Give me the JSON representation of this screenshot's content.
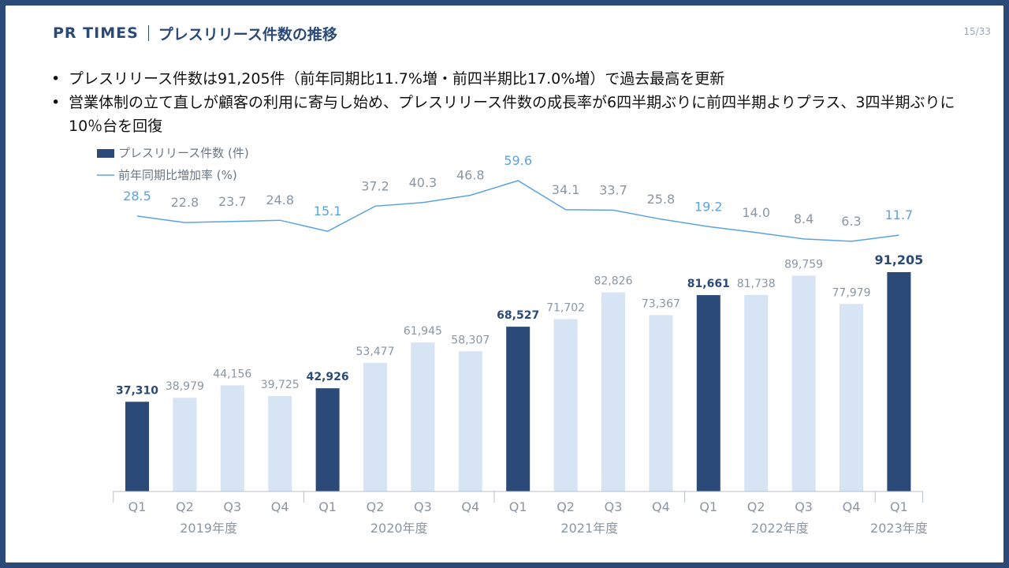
{
  "header": {
    "brand": "PR TIMES",
    "title": "プレスリリース件数の推移",
    "page": "15/33"
  },
  "bullets": [
    "プレスリリース件数は91,205件（前年同期比11.7%増・前四半期比17.0%増）で過去最高を更新",
    "営業体制の立て直しが顧客の利用に寄与し始め、プレスリリース件数の成長率が6四半期ぶりに前四半期よりプラス、3四半期ぶりに10％台を回復"
  ],
  "chart_data": {
    "type": "bar",
    "categories": [
      "Q1",
      "Q2",
      "Q3",
      "Q4",
      "Q1",
      "Q2",
      "Q3",
      "Q4",
      "Q1",
      "Q2",
      "Q3",
      "Q4",
      "Q1",
      "Q2",
      "Q3",
      "Q4",
      "Q1"
    ],
    "groups": [
      "2019年度",
      "2020年度",
      "2021年度",
      "2022年度",
      "2023年度"
    ],
    "group_of": [
      0,
      0,
      0,
      0,
      1,
      1,
      1,
      1,
      2,
      2,
      2,
      2,
      3,
      3,
      3,
      3,
      4
    ],
    "series": [
      {
        "name": "プレスリリース件数 (件)",
        "type": "bar",
        "values": [
          37310,
          38979,
          44156,
          39725,
          42926,
          53477,
          61945,
          58307,
          68527,
          71702,
          82826,
          73367,
          81661,
          81738,
          89759,
          77979,
          91205
        ],
        "labels": [
          "37,310",
          "38,979",
          "44,156",
          "39,725",
          "42,926",
          "53,477",
          "61,945",
          "58,307",
          "68,527",
          "71,702",
          "82,826",
          "73,367",
          "81,661",
          "81,738",
          "89,759",
          "77,979",
          "91,205"
        ]
      },
      {
        "name": "前年同期比増加率 (%)",
        "type": "line",
        "values": [
          28.5,
          22.8,
          23.7,
          24.8,
          15.1,
          37.2,
          40.3,
          46.8,
          59.6,
          34.1,
          33.7,
          25.8,
          19.2,
          14.0,
          8.4,
          6.3,
          11.7
        ],
        "labels": [
          "28.5",
          "22.8",
          "23.7",
          "24.8",
          "15.1",
          "37.2",
          "40.3",
          "46.8",
          "59.6",
          "34.1",
          "33.7",
          "25.8",
          "19.2",
          "14.0",
          "8.4",
          "6.3",
          "11.7"
        ]
      }
    ],
    "highlight_q1": true,
    "ylim_bar": [
      0,
      100000
    ],
    "ylim_line": [
      0,
      60
    ],
    "colors": {
      "dark": "#2b4a78",
      "light": "#d6e4f3",
      "line": "#5ba3e0",
      "label_gray": "#8a96a4",
      "label_blue": "#5ba3e0"
    }
  }
}
